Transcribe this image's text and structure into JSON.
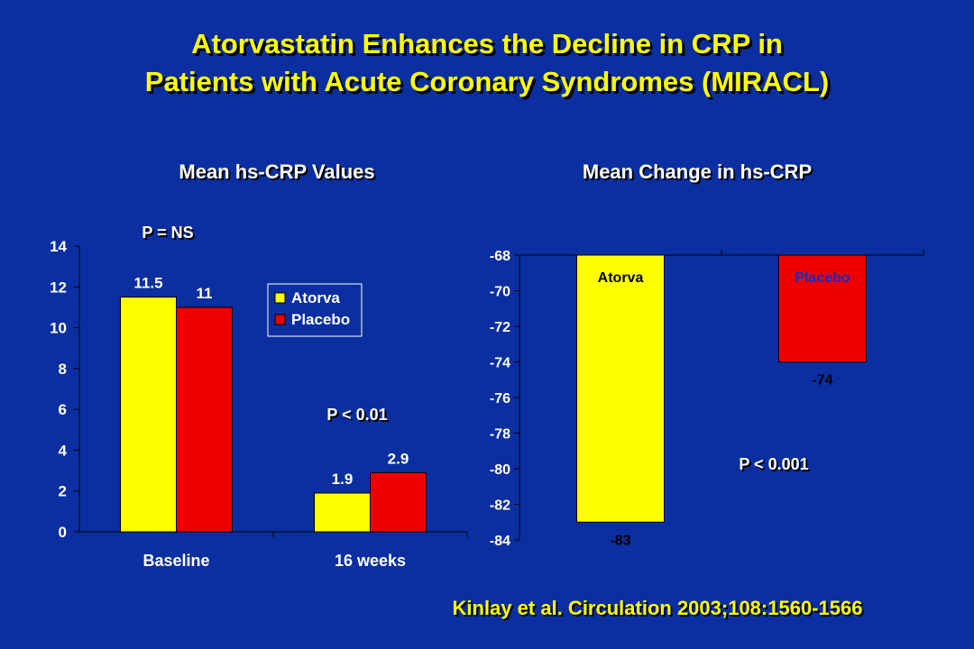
{
  "title": {
    "line1": "Atorvastatin Enhances the Decline in CRP in",
    "line2": "Patients with Acute Coronary Syndromes (MIRACL)"
  },
  "citation": "Kinlay et al. Circulation 2003;108:1560-1566",
  "colors": {
    "background": "#0b2fa0",
    "title": "#ffff00",
    "atorva": "#ffff00",
    "placebo": "#ee0000"
  },
  "chart_data": [
    {
      "type": "bar",
      "title": "Mean hs-CRP Values",
      "categories": [
        "Baseline",
        "16 weeks"
      ],
      "series": [
        {
          "name": "Atorva",
          "values": [
            11.5,
            1.9
          ],
          "labels": [
            "11.5",
            "1.9"
          ]
        },
        {
          "name": "Placebo",
          "values": [
            11,
            2.9
          ],
          "labels": [
            "11",
            "2.9"
          ]
        }
      ],
      "ylim": [
        0,
        14
      ],
      "yticks": [
        "0",
        "2",
        "4",
        "6",
        "8",
        "10",
        "12",
        "14"
      ],
      "legend": "right",
      "annotations": [
        "P = NS",
        "P < 0.01"
      ]
    },
    {
      "type": "bar",
      "title": "Mean Change in hs-CRP",
      "categories": [
        "Atorva",
        "Placebo"
      ],
      "values": [
        -83,
        -74
      ],
      "value_labels": [
        "-83",
        "-74"
      ],
      "ylim": [
        -84,
        -68
      ],
      "yticks": [
        "-84",
        "-82",
        "-80",
        "-78",
        "-76",
        "-74",
        "-72",
        "-70",
        "-68"
      ],
      "annotations": [
        "P < 0.001"
      ]
    }
  ]
}
